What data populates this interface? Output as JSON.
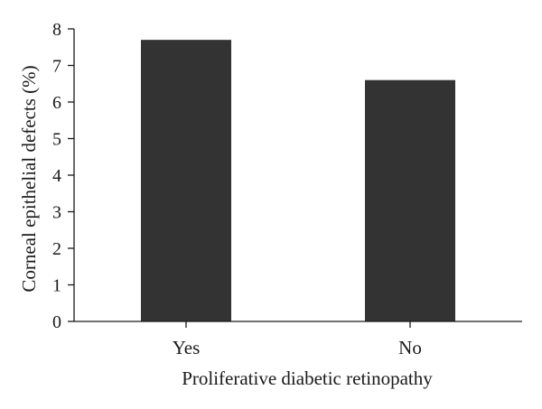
{
  "chart_data": {
    "type": "bar",
    "categories": [
      "Yes",
      "No"
    ],
    "values": [
      7.7,
      6.6
    ],
    "xlabel": "Proliferative diabetic retinopathy",
    "ylabel": "Corneal epithelial defects (%)",
    "ylim": [
      0,
      8
    ],
    "yticks": [
      0,
      1,
      2,
      3,
      4,
      5,
      6,
      7,
      8
    ],
    "bar_color": "#333333",
    "grid": false,
    "legend": "none"
  }
}
